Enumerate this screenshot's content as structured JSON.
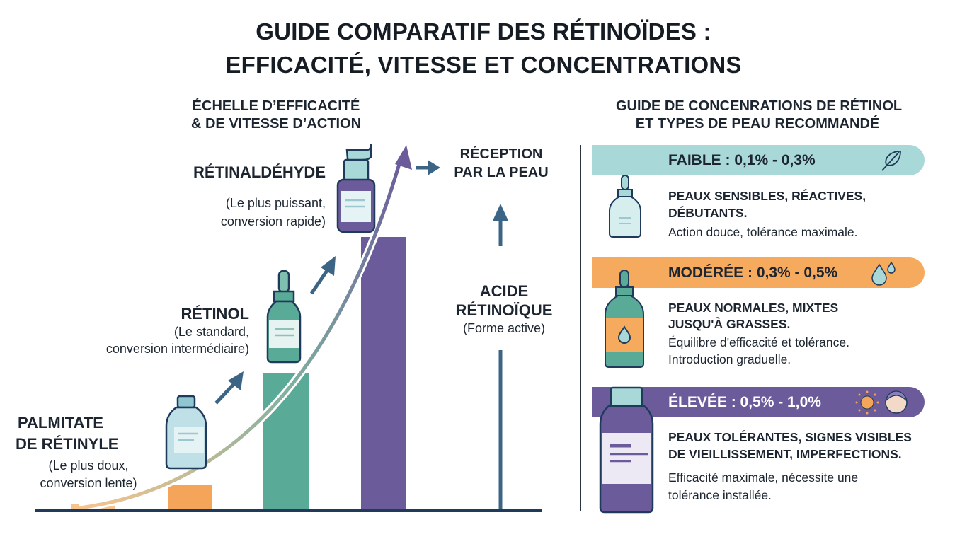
{
  "title": {
    "line1": "GUIDE COMPARATIF DES RÉTINOÏDES :",
    "line2": "EFFICACITÉ, VITESSE ET CONCENTRATIONS"
  },
  "left": {
    "heading": {
      "line1": "ÉCHELLE D’EFFICACITÉ",
      "line2": "& DE VITESSE D’ACTION"
    },
    "steps": [
      {
        "name1": "PALMITATE",
        "name2": "DE RÉTINYLE",
        "desc1": "(Le plus doux,",
        "desc2": "conversion lente)",
        "color": "#f5a55a"
      },
      {
        "name1": "RÉTINOL",
        "desc1": "(Le standard,",
        "desc2": "conversion intermédiaire)",
        "color": "#5aaa98"
      },
      {
        "name1": "RÉTINALDÉHYDE",
        "desc1": "(Le plus puissant,",
        "desc2": "conversion rapide)",
        "color": "#6b5b9a"
      }
    ],
    "reception": {
      "line1": "RÉCEPTION",
      "line2": "PAR LA PEAU"
    },
    "acid": {
      "line1": "ACIDE",
      "line2": "RÉTINOÏQUE",
      "note": "(Forme active)"
    }
  },
  "right": {
    "heading": {
      "line1": "GUIDE DE CONCENRATIONS DE RÉTINOL",
      "line2": "ET TYPES DE PEAU RECOMMANDÉ"
    },
    "levels": [
      {
        "label": "FAIBLE : 0,1% - 0,3%",
        "icon": "feather-icon",
        "color": "#a9d8d8",
        "bold1": "PEAUX SENSIBLES, RÉACTIVES,",
        "bold2": "DÉBUTANTS.",
        "text1": "Action douce, tolérance maximale."
      },
      {
        "label": "MODÉRÉE : 0,3% - 0,5%",
        "icon": "water-drops-icon",
        "color": "#f5aa5d",
        "bold1": "PEAUX NORMALES, MIXTES",
        "bold2": "JUSQU'À GRASSES.",
        "text1": "Équilibre d'efficacité et tolérance.",
        "text2": "Introduction graduelle."
      },
      {
        "label": "ÉLEVÉE : 0,5% - 1,0%",
        "icon": "sun-face-icon",
        "color": "#6b5b9a",
        "bold1": "PEAUX TOLÉRANTES, SIGNES VISIBLES",
        "bold2": "DE VIEILLISSEMENT, IMPERFECTIONS.",
        "text1": "Efficacité maximale, nécessite une",
        "text2": "tolérance installée."
      }
    ]
  }
}
